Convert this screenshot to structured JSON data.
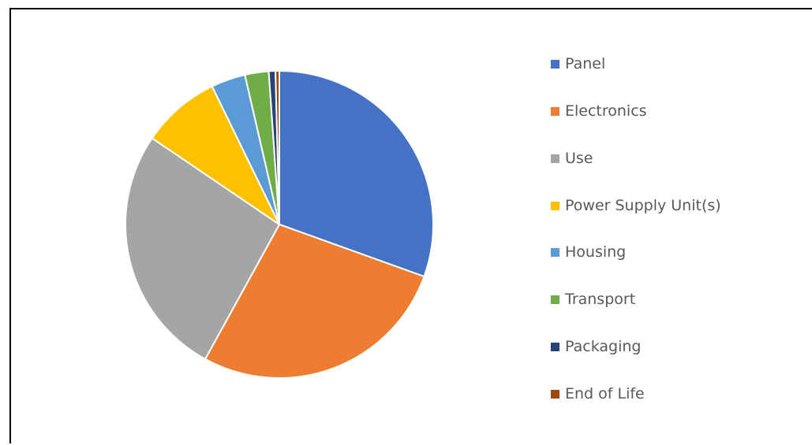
{
  "chart_data": {
    "type": "pie",
    "title": "",
    "legend_position": "right",
    "start_angle_deg": 0,
    "direction": "clockwise",
    "slice_border_color": "#ffffff",
    "slices": [
      {
        "name": "Panel",
        "value": 30.5,
        "color": "#4472C4"
      },
      {
        "name": "Electronics",
        "value": 27.5,
        "color": "#ED7D31"
      },
      {
        "name": "Use",
        "value": 26.5,
        "color": "#A5A5A5"
      },
      {
        "name": "Power Supply Unit(s)",
        "value": 8.3,
        "color": "#FFC000"
      },
      {
        "name": "Housing",
        "value": 3.6,
        "color": "#5B9BD5"
      },
      {
        "name": "Transport",
        "value": 2.5,
        "color": "#70AD47"
      },
      {
        "name": "Packaging",
        "value": 0.7,
        "color": "#264478"
      },
      {
        "name": "End of Life",
        "value": 0.4,
        "color": "#9E480E"
      }
    ]
  }
}
